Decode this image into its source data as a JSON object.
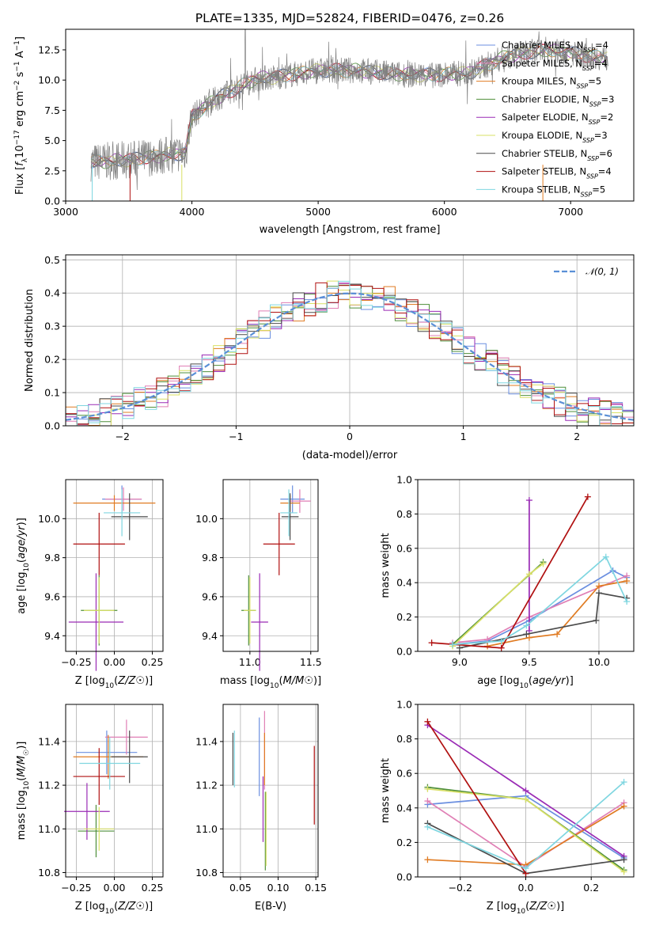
{
  "title": "PLATE=1335, MJD=52824, FIBERID=0476, z=0.26",
  "colors": {
    "Chabrier MILES": "#6b8fe0",
    "Salpeter MILES": "#e07fb5",
    "Kroupa MILES": "#e07b22",
    "Chabrier ELODIE": "#4f8f3a",
    "Salpeter ELODIE": "#9a2bb5",
    "Kroupa ELODIE": "#d9e066",
    "Chabrier STELIB": "#4a4a4a",
    "Salpeter STELIB": "#b01010",
    "Kroupa STELIB": "#7fd6e0",
    "data": "#808080",
    "gauss": "#5a8fd6"
  },
  "chart_data": [
    {
      "id": "spectrum",
      "type": "line",
      "title": "PLATE=1335, MJD=52824, FIBERID=0476, z=0.26",
      "xlabel": "wavelength [Angstrom, rest frame]",
      "ylabel": "Flux [f_λ 10^-17 erg cm^-2 s^-1 A^-1]",
      "xlim": [
        3000,
        7500
      ],
      "ylim": [
        0,
        14.2
      ],
      "xticks": [
        "3000",
        "4000",
        "5000",
        "6000",
        "7000"
      ],
      "yticks": [
        "0.0",
        "2.5",
        "5.0",
        "7.5",
        "10.0",
        "12.5"
      ],
      "continuum_x": [
        3200,
        3500,
        3950,
        4000,
        4200,
        4500,
        4700,
        5000,
        5300,
        5600,
        5900,
        6200,
        6500,
        6800,
        7300
      ],
      "continuum_y": [
        3.2,
        3.4,
        4.0,
        7.0,
        8.5,
        10.1,
        10.3,
        10.8,
        10.8,
        10.5,
        10.4,
        10.6,
        12.0,
        12.5,
        11.8
      ],
      "legend": [
        {
          "label": "Chabrier MILES, N",
          "sub": "SSP",
          "tail": "=4"
        },
        {
          "label": "Salpeter MILES, N",
          "sub": "SSP",
          "tail": "=4"
        },
        {
          "label": "Kroupa MILES, N",
          "sub": "SSP",
          "tail": "=5"
        },
        {
          "label": "Chabrier ELODIE, N",
          "sub": "SSP",
          "tail": "=3"
        },
        {
          "label": "Salpeter ELODIE, N",
          "sub": "SSP",
          "tail": "=2"
        },
        {
          "label": "Kroupa ELODIE, N",
          "sub": "SSP",
          "tail": "=3"
        },
        {
          "label": "Chabrier STELIB, N",
          "sub": "SSP",
          "tail": "=6"
        },
        {
          "label": "Salpeter STELIB, N",
          "sub": "SSP",
          "tail": "=4"
        },
        {
          "label": "Kroupa STELIB, N",
          "sub": "SSP",
          "tail": "=5"
        }
      ]
    },
    {
      "id": "residuals",
      "type": "bar",
      "xlabel": "(data-model)/error",
      "ylabel": "Normed distribution",
      "xlim": [
        -2.5,
        2.5
      ],
      "ylim": [
        0,
        0.515
      ],
      "xticks": [
        "−2",
        "−1",
        "0",
        "1",
        "2"
      ],
      "yticks": [
        "0.0",
        "0.1",
        "0.2",
        "0.3",
        "0.4",
        "0.5"
      ],
      "bin_width": 0.1,
      "legend": "N(0,1)"
    },
    {
      "id": "age-vs-z",
      "type": "scatter",
      "xlabel": "Z [log10(Z/Z☉)]",
      "ylabel": "age  [log10(age/yr)]",
      "xlim": [
        -0.32,
        0.32
      ],
      "ylim": [
        9.32,
        10.2
      ],
      "xticks": [
        "−0.25",
        "0.00",
        "0.25"
      ],
      "yticks": [
        "9.4",
        "9.6",
        "9.8",
        "10.0"
      ],
      "points": [
        {
          "model": "Chabrier MILES",
          "z": 0.05,
          "val": 10.1,
          "zerr": 0.13,
          "verr": 0.07
        },
        {
          "model": "Salpeter MILES",
          "z": 0.06,
          "val": 10.1,
          "zerr": 0.12,
          "verr": 0.06
        },
        {
          "model": "Kroupa MILES",
          "z": 0.0,
          "val": 10.08,
          "zerr": 0.27,
          "verr": 0.04
        },
        {
          "model": "Chabrier ELODIE",
          "z": -0.1,
          "val": 9.53,
          "zerr": 0.12,
          "verr": 0.18
        },
        {
          "model": "Salpeter ELODIE",
          "z": -0.12,
          "val": 9.47,
          "zerr": 0.18,
          "verr": 0.25
        },
        {
          "model": "Kroupa ELODIE",
          "z": -0.1,
          "val": 9.53,
          "zerr": 0.1,
          "verr": 0.17
        },
        {
          "model": "Chabrier STELIB",
          "z": 0.1,
          "val": 10.01,
          "zerr": 0.12,
          "verr": 0.12
        },
        {
          "model": "Salpeter STELIB",
          "z": -0.1,
          "val": 9.87,
          "zerr": 0.17,
          "verr": 0.16
        },
        {
          "model": "Kroupa STELIB",
          "z": 0.05,
          "val": 10.03,
          "zerr": 0.12,
          "verr": 0.12
        }
      ]
    },
    {
      "id": "age-vs-mass",
      "type": "scatter",
      "xlabel": "mass [log10(M/M☉)]",
      "xlim": [
        10.78,
        11.56
      ],
      "ylim": [
        9.32,
        10.2
      ],
      "xticks": [
        "11.0",
        "11.5"
      ],
      "yticks": [
        "9.4",
        "9.6",
        "9.8",
        "10.0"
      ],
      "points": [
        {
          "model": "Chabrier MILES",
          "m": 11.35,
          "val": 10.1,
          "merr": 0.1,
          "verr": 0.07
        },
        {
          "model": "Salpeter MILES",
          "m": 11.41,
          "val": 10.09,
          "merr": 0.09,
          "verr": 0.06
        },
        {
          "model": "Kroupa MILES",
          "m": 11.33,
          "val": 10.08,
          "merr": 0.08,
          "verr": 0.04
        },
        {
          "model": "Chabrier ELODIE",
          "m": 10.99,
          "val": 9.53,
          "merr": 0.06,
          "verr": 0.18
        },
        {
          "model": "Salpeter ELODIE",
          "m": 11.08,
          "val": 9.47,
          "merr": 0.07,
          "verr": 0.25
        },
        {
          "model": "Kroupa ELODIE",
          "m": 11.0,
          "val": 9.53,
          "merr": 0.05,
          "verr": 0.17
        },
        {
          "model": "Chabrier STELIB",
          "m": 11.33,
          "val": 10.01,
          "merr": 0.07,
          "verr": 0.12
        },
        {
          "model": "Salpeter STELIB",
          "m": 11.24,
          "val": 9.87,
          "merr": 0.13,
          "verr": 0.16
        },
        {
          "model": "Kroupa STELIB",
          "m": 11.32,
          "val": 10.03,
          "merr": 0.07,
          "verr": 0.12
        }
      ]
    },
    {
      "id": "mass-weight-vs-age",
      "type": "line",
      "xlabel": "age  [log10(age/yr)]",
      "ylabel": "mass weight",
      "xlim": [
        8.7,
        10.25
      ],
      "ylim": [
        0,
        1.0
      ],
      "xticks": [
        "9.0",
        "9.5",
        "10.0"
      ],
      "yticks": [
        "0.0",
        "0.2",
        "0.4",
        "0.6",
        "0.8",
        "1.0"
      ],
      "series": [
        {
          "model": "Chabrier MILES",
          "x": [
            8.95,
            9.2,
            9.5,
            10.1,
            10.2
          ],
          "y": [
            0.04,
            0.06,
            0.18,
            0.47,
            0.43
          ]
        },
        {
          "model": "Salpeter MILES",
          "x": [
            8.95,
            9.2,
            9.5,
            10.2
          ],
          "y": [
            0.05,
            0.07,
            0.2,
            0.44
          ]
        },
        {
          "model": "Kroupa MILES",
          "x": [
            9.2,
            9.5,
            9.7,
            10.0,
            10.2
          ],
          "y": [
            0.03,
            0.08,
            0.1,
            0.38,
            0.41
          ]
        },
        {
          "model": "Chabrier ELODIE",
          "x": [
            8.95,
            9.6
          ],
          "y": [
            0.04,
            0.52
          ]
        },
        {
          "model": "Salpeter ELODIE",
          "x": [
            9.5,
            9.5
          ],
          "y": [
            0.12,
            0.88
          ]
        },
        {
          "model": "Kroupa ELODIE",
          "x": [
            8.95,
            9.5,
            9.6
          ],
          "y": [
            0.03,
            0.45,
            0.51
          ]
        },
        {
          "model": "Chabrier STELIB",
          "x": [
            9.0,
            9.48,
            9.98,
            10.0,
            10.2
          ],
          "y": [
            0.02,
            0.1,
            0.18,
            0.34,
            0.31
          ]
        },
        {
          "model": "Salpeter STELIB",
          "x": [
            8.8,
            9.3,
            9.92
          ],
          "y": [
            0.05,
            0.02,
            0.9
          ]
        },
        {
          "model": "Kroupa STELIB",
          "x": [
            8.95,
            9.3,
            9.48,
            10.05,
            10.2
          ],
          "y": [
            0.04,
            0.06,
            0.15,
            0.55,
            0.29
          ]
        }
      ]
    },
    {
      "id": "mass-vs-z",
      "type": "scatter",
      "xlabel": "Z [log10(Z/Z☉)]",
      "ylabel": "mass [log10(M/M☉)]",
      "xlim": [
        -0.32,
        0.32
      ],
      "ylim": [
        10.78,
        11.57
      ],
      "xticks": [
        "−0.25",
        "0.00",
        "0.25"
      ],
      "yticks": [
        "10.8",
        "11.0",
        "11.2",
        "11.4"
      ],
      "points": [
        {
          "model": "Chabrier MILES",
          "z": -0.05,
          "val": 11.35,
          "zerr": 0.2,
          "verr": 0.1
        },
        {
          "model": "Salpeter MILES",
          "z": 0.08,
          "val": 11.42,
          "zerr": 0.14,
          "verr": 0.08
        },
        {
          "model": "Kroupa MILES",
          "z": -0.04,
          "val": 11.33,
          "zerr": 0.23,
          "verr": 0.1
        },
        {
          "model": "Chabrier ELODIE",
          "z": -0.12,
          "val": 10.99,
          "zerr": 0.12,
          "verr": 0.12
        },
        {
          "model": "Salpeter ELODIE",
          "z": -0.18,
          "val": 11.08,
          "zerr": 0.15,
          "verr": 0.13
        },
        {
          "model": "Kroupa ELODIE",
          "z": -0.1,
          "val": 11.0,
          "zerr": 0.1,
          "verr": 0.1
        },
        {
          "model": "Chabrier STELIB",
          "z": 0.1,
          "val": 11.33,
          "zerr": 0.12,
          "verr": 0.12
        },
        {
          "model": "Salpeter STELIB",
          "z": -0.1,
          "val": 11.24,
          "zerr": 0.17,
          "verr": 0.13
        },
        {
          "model": "Kroupa STELIB",
          "z": -0.03,
          "val": 11.3,
          "zerr": 0.2,
          "verr": 0.12
        }
      ]
    },
    {
      "id": "mass-vs-ebv",
      "type": "scatter",
      "xlabel": "E(B-V)",
      "xlim": [
        0.027,
        0.153
      ],
      "ylim": [
        10.78,
        11.57
      ],
      "xticks": [
        "0.05",
        "0.10",
        "0.15"
      ],
      "yticks": [
        "10.8",
        "11.0",
        "11.2",
        "11.4"
      ],
      "points": [
        {
          "model": "Chabrier MILES",
          "ebv": 0.075,
          "val": 11.33,
          "verr": 0.18
        },
        {
          "model": "Salpeter MILES",
          "ebv": 0.082,
          "val": 11.36,
          "verr": 0.18
        },
        {
          "model": "Kroupa MILES",
          "ebv": 0.082,
          "val": 11.32,
          "verr": 0.12
        },
        {
          "model": "Chabrier ELODIE",
          "ebv": 0.083,
          "val": 10.99,
          "verr": 0.18
        },
        {
          "model": "Salpeter ELODIE",
          "ebv": 0.08,
          "val": 11.09,
          "verr": 0.15
        },
        {
          "model": "Kroupa ELODIE",
          "ebv": 0.084,
          "val": 11.0,
          "verr": 0.17
        },
        {
          "model": "Chabrier STELIB",
          "ebv": 0.04,
          "val": 11.32,
          "verr": 0.12
        },
        {
          "model": "Salpeter STELIB",
          "ebv": 0.148,
          "val": 11.2,
          "verr": 0.18
        },
        {
          "model": "Kroupa STELIB",
          "ebv": 0.042,
          "val": 11.32,
          "verr": 0.13
        }
      ]
    },
    {
      "id": "mass-weight-vs-z",
      "type": "line",
      "xlabel": "Z [log10(Z/Z☉)]",
      "ylabel": "mass weight",
      "xlim": [
        -0.33,
        0.33
      ],
      "ylim": [
        0,
        1.0
      ],
      "xticks": [
        "−0.2",
        "0.0",
        "0.2"
      ],
      "yticks": [
        "0.0",
        "0.2",
        "0.4",
        "0.6",
        "0.8",
        "1.0"
      ],
      "series": [
        {
          "model": "Chabrier MILES",
          "x": [
            -0.3,
            0.0,
            0.3
          ],
          "y": [
            0.42,
            0.47,
            0.11
          ]
        },
        {
          "model": "Salpeter MILES",
          "x": [
            -0.3,
            0.0,
            0.3
          ],
          "y": [
            0.44,
            0.06,
            0.43
          ]
        },
        {
          "model": "Kroupa MILES",
          "x": [
            -0.3,
            0.0,
            0.3
          ],
          "y": [
            0.1,
            0.07,
            0.41
          ]
        },
        {
          "model": "Chabrier ELODIE",
          "x": [
            -0.3,
            0.0,
            0.3
          ],
          "y": [
            0.52,
            0.45,
            0.04
          ]
        },
        {
          "model": "Salpeter ELODIE",
          "x": [
            -0.3,
            0.0,
            0.3
          ],
          "y": [
            0.88,
            0.5,
            0.12
          ]
        },
        {
          "model": "Kroupa ELODIE",
          "x": [
            -0.3,
            0.0,
            0.3
          ],
          "y": [
            0.51,
            0.45,
            0.03
          ]
        },
        {
          "model": "Chabrier STELIB",
          "x": [
            -0.3,
            0.0,
            0.3
          ],
          "y": [
            0.31,
            0.02,
            0.1
          ]
        },
        {
          "model": "Salpeter STELIB",
          "x": [
            -0.3,
            0.0
          ],
          "y": [
            0.9,
            0.02
          ]
        },
        {
          "model": "Kroupa STELIB",
          "x": [
            -0.3,
            0.0,
            0.3
          ],
          "y": [
            0.29,
            0.05,
            0.55
          ]
        }
      ]
    }
  ]
}
